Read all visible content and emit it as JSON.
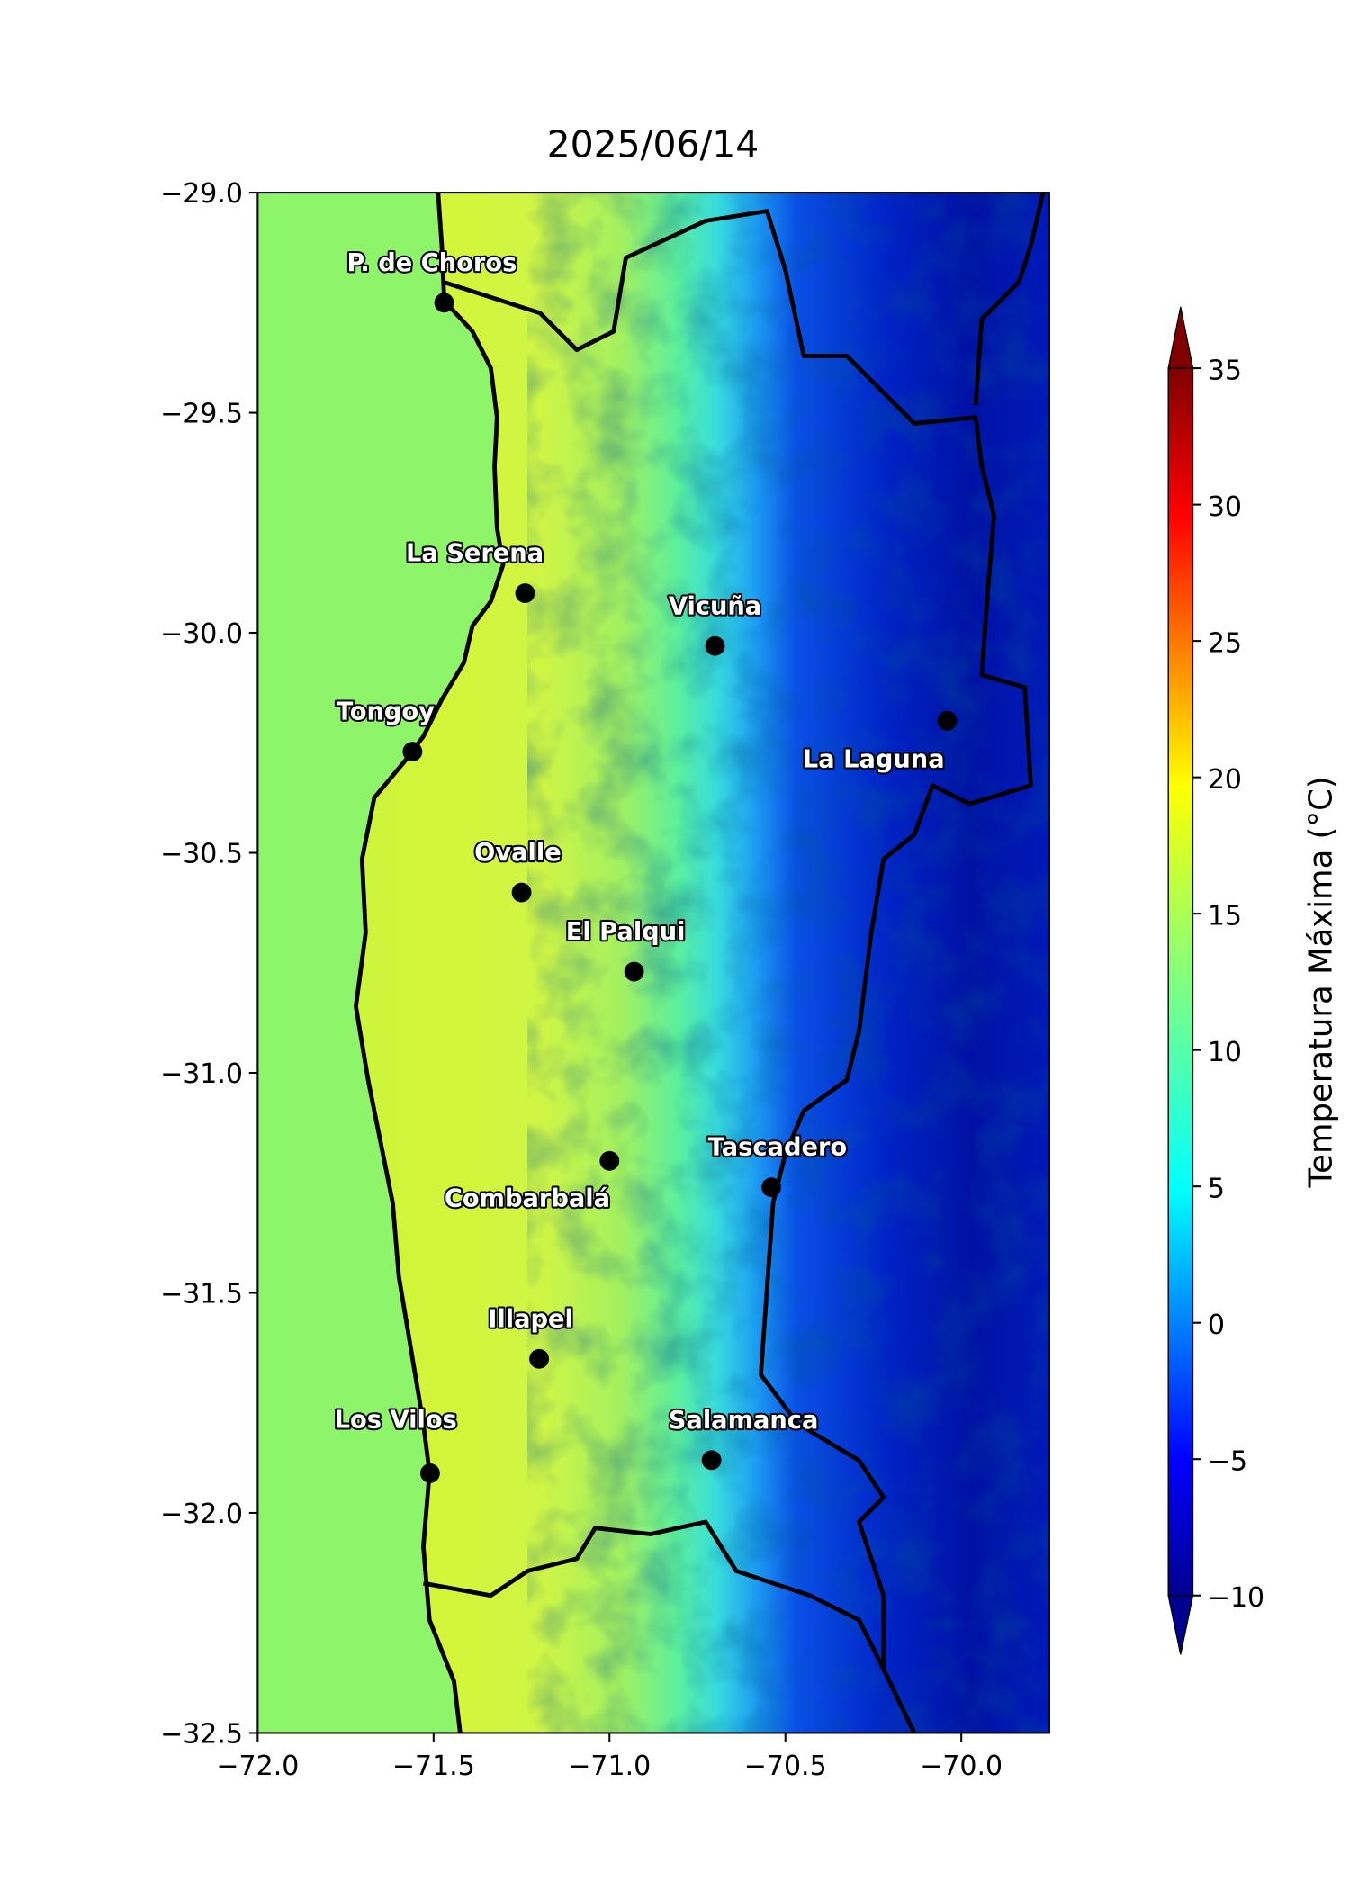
{
  "title": "2025/06/14",
  "map": {
    "xlim": [
      -72,
      -69.75
    ],
    "ylim": [
      -32.5,
      -29
    ],
    "xticks": [
      {
        "value": -72,
        "label": "−72.0"
      },
      {
        "value": -71.5,
        "label": "−71.5"
      },
      {
        "value": -71,
        "label": "−71.0"
      },
      {
        "value": -70.5,
        "label": "−70.5"
      },
      {
        "value": -70,
        "label": "−70.0"
      }
    ],
    "yticks": [
      {
        "value": -29,
        "label": "−29.0"
      },
      {
        "value": -29.5,
        "label": "−29.5"
      },
      {
        "value": -30,
        "label": "−30.0"
      },
      {
        "value": -30.5,
        "label": "−30.5"
      },
      {
        "value": -31,
        "label": "−31.0"
      },
      {
        "value": -31.5,
        "label": "−31.5"
      },
      {
        "value": -32,
        "label": "−32.0"
      },
      {
        "value": -32.5,
        "label": "−32.5"
      }
    ],
    "cities": [
      {
        "name": "P. de Choros",
        "lon": -71.47,
        "lat": -29.25
      },
      {
        "name": "La Serena",
        "lon": -71.24,
        "lat": -29.91
      },
      {
        "name": "Vicuña",
        "lon": -70.7,
        "lat": -30.03
      },
      {
        "name": "La Laguna",
        "lon": -70.04,
        "lat": -30.2
      },
      {
        "name": "Tongoy",
        "lon": -71.56,
        "lat": -30.27
      },
      {
        "name": "Ovalle",
        "lon": -71.25,
        "lat": -30.59
      },
      {
        "name": "El Palqui",
        "lon": -70.93,
        "lat": -30.77
      },
      {
        "name": "Combarbalá",
        "lon": -71.0,
        "lat": -31.2
      },
      {
        "name": "Tascadero",
        "lon": -70.54,
        "lat": -31.26
      },
      {
        "name": "Illapel",
        "lon": -71.2,
        "lat": -31.65
      },
      {
        "name": "Los Vilos",
        "lon": -71.51,
        "lat": -31.91
      },
      {
        "name": "Salamanca",
        "lon": -70.71,
        "lat": -31.88
      }
    ]
  },
  "colorbar": {
    "label": "Temperatura Máxima (°C)",
    "limits": [
      -10,
      35
    ],
    "ticks": [
      {
        "value": -10,
        "label": "−10"
      },
      {
        "value": -5,
        "label": "−5"
      },
      0,
      5,
      10,
      15,
      20,
      25,
      30,
      35
    ]
  }
}
